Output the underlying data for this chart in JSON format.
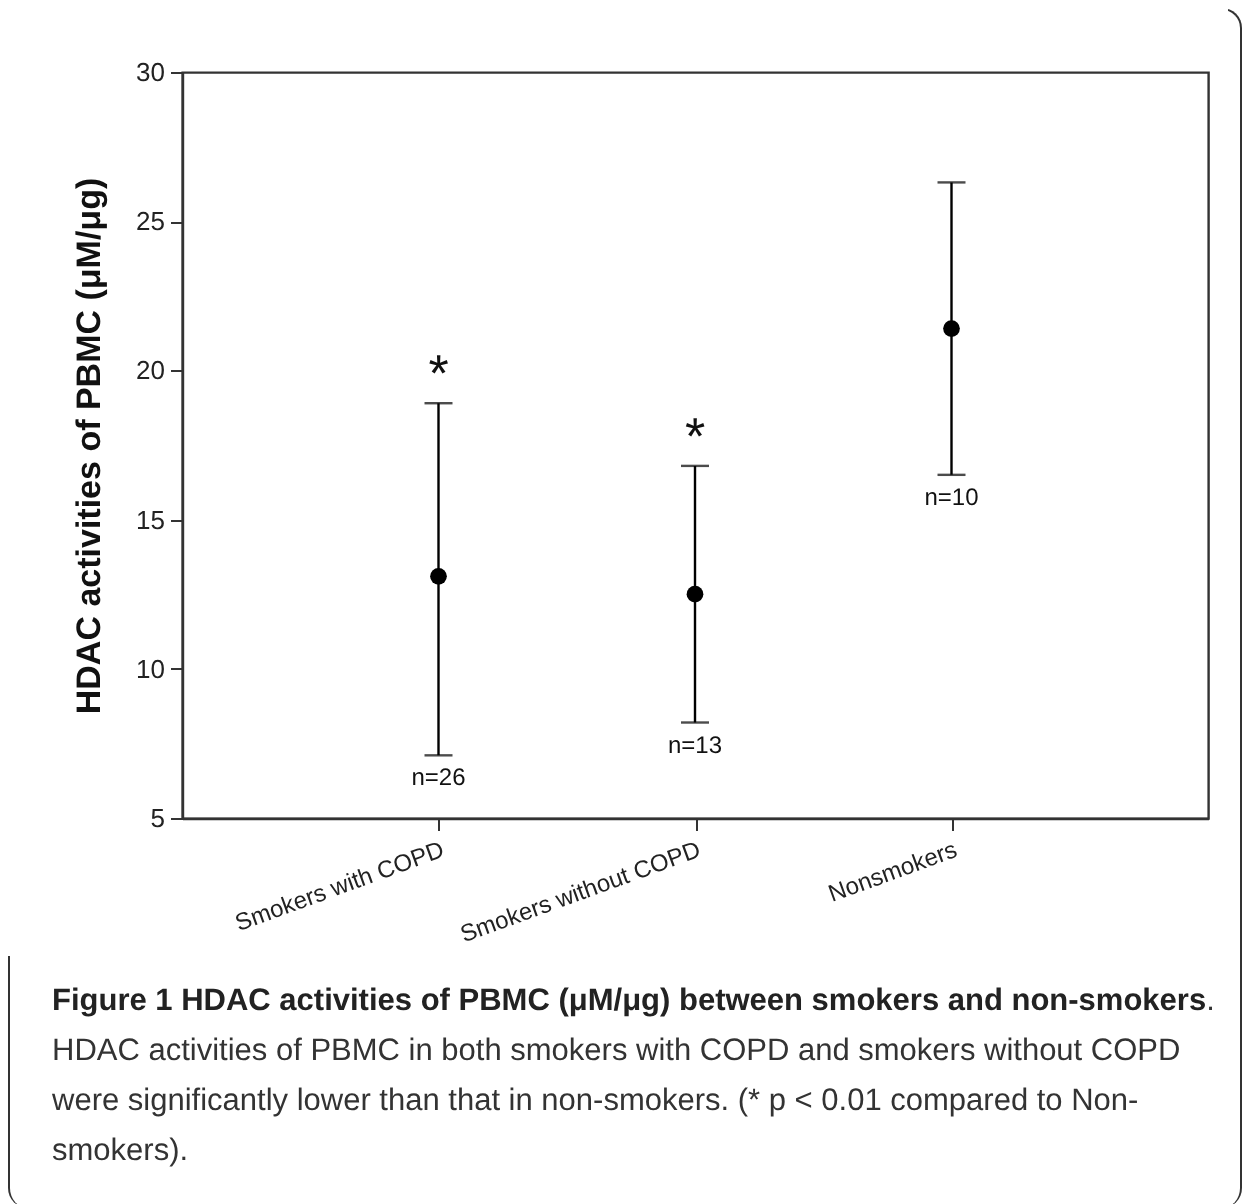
{
  "chart_data": {
    "type": "scatter",
    "title": "Figure 1 HDAC activities of PBMC (μM/μg) between smokers and non-smokers",
    "ylabel": "HDAC activities of PBMC (μM/μg)",
    "categories": [
      "Smokers with COPD",
      "Smokers without COPD",
      "Nonsmokers"
    ],
    "series": [
      {
        "color": "#000000",
        "values": [
          13.1,
          12.5,
          21.4
        ],
        "errors": [
          [
            7.1,
            18.9
          ],
          [
            8.2,
            16.8
          ],
          [
            16.5,
            26.3
          ]
        ]
      }
    ],
    "ylim": [
      5,
      30
    ],
    "yticks": [
      5,
      10,
      15,
      20,
      25,
      30
    ],
    "grid": false,
    "marker": "circle",
    "annotations": [
      "*",
      "*",
      "n=26",
      "n=13",
      "n=10",
      ". HDAC activities of PBMC in both smokers with COPD and smokers without COPD were significantly lower than that in non-smokers. (* p < 0.01 compared to Non-smokers)."
    ]
  }
}
